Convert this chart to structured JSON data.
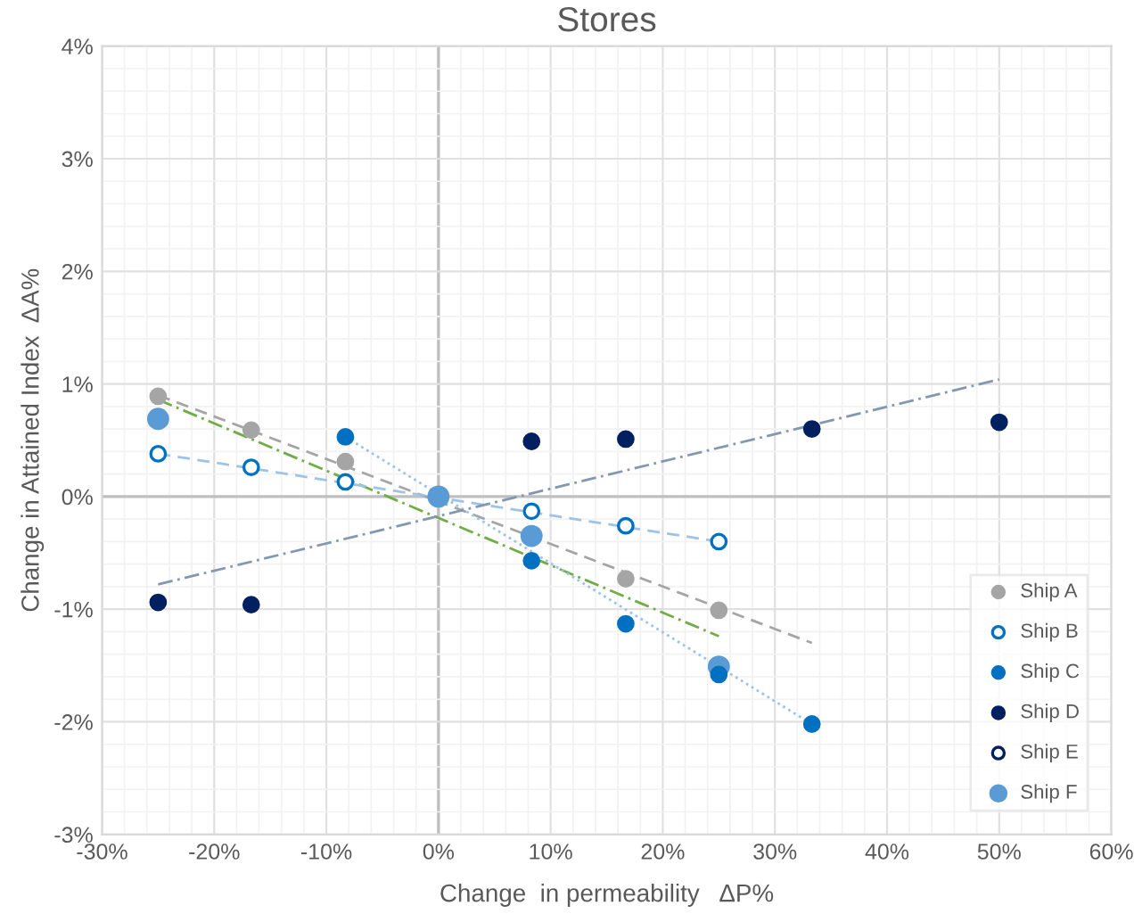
{
  "chart_data": {
    "type": "scatter",
    "title": "Stores",
    "xlabel": "Change  in permeability   ΔP%",
    "ylabel": "Change in Attained Index  ΔA%",
    "xlim": [
      -30,
      60
    ],
    "xticks": [
      {
        "value": -30,
        "label": "-30%"
      },
      {
        "value": -20,
        "label": "-20%"
      },
      {
        "value": -10,
        "label": "-10%"
      },
      {
        "value": 0,
        "label": "0%"
      },
      {
        "value": 10,
        "label": "10%"
      },
      {
        "value": 20,
        "label": "20%"
      },
      {
        "value": 30,
        "label": "30%"
      },
      {
        "value": 40,
        "label": "40%"
      },
      {
        "value": 50,
        "label": "50%"
      },
      {
        "value": 60,
        "label": "60%"
      }
    ],
    "ylim": [
      -3,
      4
    ],
    "yticks": [
      {
        "value": -3,
        "label": "-3%"
      },
      {
        "value": -2,
        "label": "-2%"
      },
      {
        "value": -1,
        "label": "-1%"
      },
      {
        "value": 0,
        "label": "0%"
      },
      {
        "value": 1,
        "label": "1%"
      },
      {
        "value": 2,
        "label": "2%"
      },
      {
        "value": 3,
        "label": "3%"
      },
      {
        "value": 4,
        "label": "4%"
      }
    ],
    "grid": true,
    "legend": "bottom right",
    "marker": "circle",
    "series": [
      {
        "type": "line",
        "marker": "none",
        "color": "#a5a5a5",
        "line_style": "dashed",
        "x": [
          -25,
          33.3
        ],
        "values": [
          0.9,
          -1.3
        ]
      },
      {
        "type": "line",
        "marker": "none",
        "color": "#70ad47",
        "line_style": "dashdot",
        "x": [
          -25,
          25
        ],
        "values": [
          0.86,
          -1.24
        ]
      },
      {
        "type": "line",
        "marker": "none",
        "color": "#9dc3e6",
        "line_style": "dashed",
        "x": [
          -25,
          25
        ],
        "values": [
          0.38,
          -0.4
        ]
      },
      {
        "type": "line",
        "marker": "none",
        "color": "#9dc3e6",
        "line_style": "dotted",
        "x": [
          -8.3,
          33.3
        ],
        "values": [
          0.53,
          -2.02
        ]
      },
      {
        "type": "line",
        "marker": "none",
        "color": "#8497b0",
        "line_style": "dashdot",
        "x": [
          -25,
          50
        ],
        "values": [
          -0.78,
          1.04
        ]
      },
      {
        "name": "Ship A",
        "color": "#a5a5a5",
        "x": [
          -25,
          -16.7,
          -8.3,
          0,
          8.3,
          16.7,
          25
        ],
        "values": [
          0.89,
          0.59,
          0.31,
          null,
          null,
          -0.73,
          -1.01
        ]
      },
      {
        "name": "Ship B",
        "color": "#0070c0",
        "x": [
          -25,
          -16.7,
          -8.3,
          0,
          8.3,
          16.7,
          25
        ],
        "values": [
          0.38,
          0.26,
          0.13,
          null,
          -0.13,
          -0.26,
          -0.4
        ]
      },
      {
        "name": "Ship C",
        "color": "#0070c0",
        "x": [
          -8.3,
          0,
          8.3,
          16.7,
          25,
          33.3
        ],
        "values": [
          0.53,
          null,
          -0.57,
          -1.13,
          -1.58,
          -2.02
        ]
      },
      {
        "name": "Ship D",
        "color": "#002060",
        "x": [
          -25,
          -16.7,
          8.3,
          16.7,
          33.3,
          50
        ],
        "values": [
          -0.94,
          -0.96,
          0.49,
          0.51,
          0.6,
          0.66
        ]
      },
      {
        "name": "Ship E",
        "color": "#002060",
        "type": "scatter"
      },
      {
        "name": "Ship F",
        "color": "#5b9bd5",
        "x": [
          -25,
          0,
          8.3,
          25
        ],
        "values": [
          0.69,
          0,
          -0.35,
          -1.51
        ]
      }
    ]
  }
}
